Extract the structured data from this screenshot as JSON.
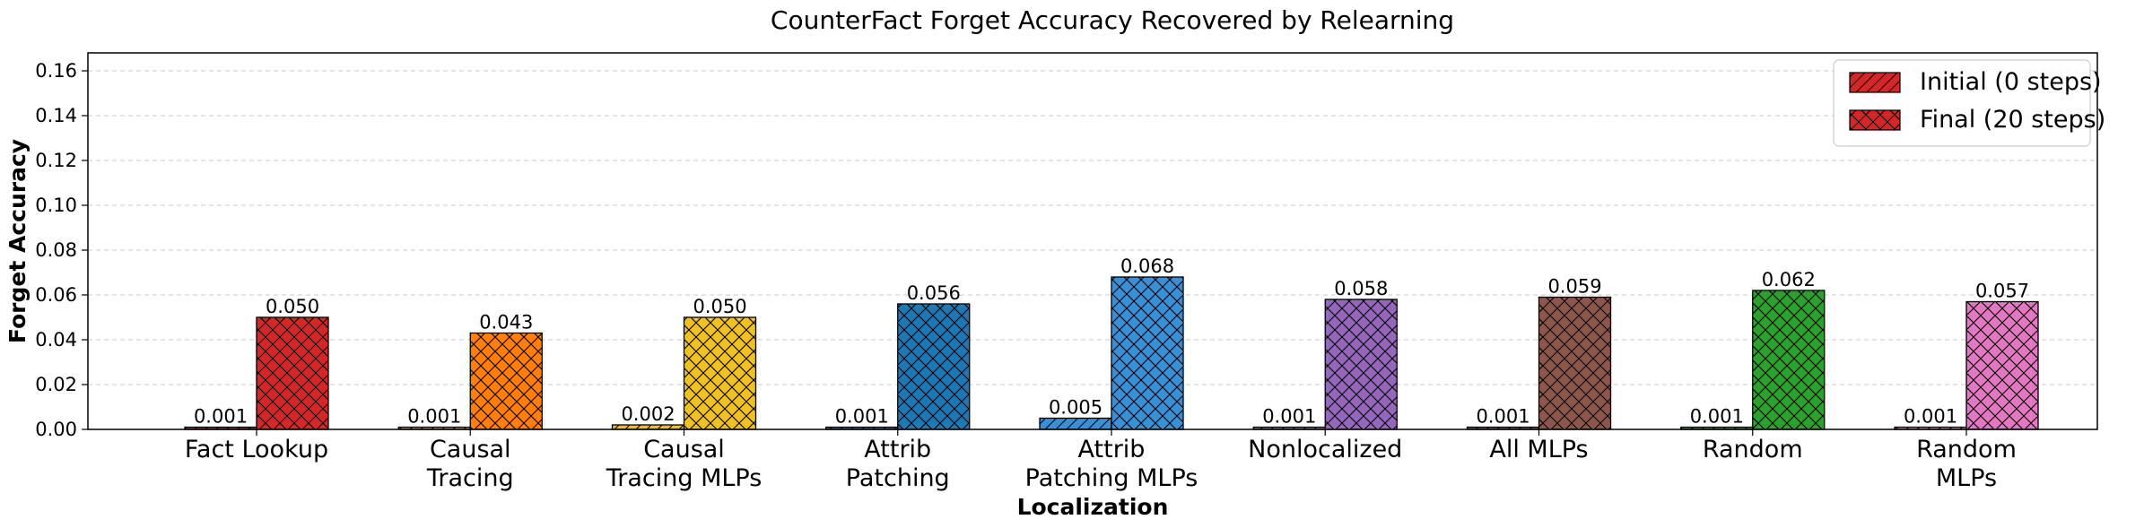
{
  "chart_data": {
    "type": "bar",
    "title": "CounterFact Forget Accuracy Recovered by Relearning",
    "xlabel": "Localization",
    "ylabel": "Forget Accuracy",
    "ylim": [
      0,
      0.168
    ],
    "yticks": [
      "0.00",
      "0.02",
      "0.04",
      "0.06",
      "0.08",
      "0.10",
      "0.12",
      "0.14",
      "0.16"
    ],
    "grid": "horizontal-dashed",
    "legend_position": "top-right",
    "categories": [
      [
        "Fact Lookup"
      ],
      [
        "Causal",
        "Tracing"
      ],
      [
        "Causal",
        "Tracing MLPs"
      ],
      [
        "Attrib",
        "Patching"
      ],
      [
        "Attrib",
        "Patching MLPs"
      ],
      [
        "Nonlocalized"
      ],
      [
        "All MLPs"
      ],
      [
        "Random"
      ],
      [
        "Random",
        "MLPs"
      ]
    ],
    "colors": [
      "#d62728",
      "#ff7f0e",
      "#f0c020",
      "#1f77b4",
      "#3a8fd6",
      "#9467bd",
      "#8c564b",
      "#2ca02c",
      "#e377c2"
    ],
    "series": [
      {
        "name": "Initial (0 steps)",
        "hatch": "diagonal",
        "values": [
          0.001,
          0.001,
          0.002,
          0.001,
          0.005,
          0.001,
          0.001,
          0.001,
          0.001
        ],
        "labels": [
          "0.001",
          "0.001",
          "0.002",
          "0.001",
          "0.005",
          "0.001",
          "0.001",
          "0.001",
          "0.001"
        ]
      },
      {
        "name": "Final (20 steps)",
        "hatch": "cross",
        "values": [
          0.05,
          0.043,
          0.05,
          0.056,
          0.068,
          0.058,
          0.059,
          0.062,
          0.057
        ],
        "labels": [
          "0.050",
          "0.043",
          "0.050",
          "0.056",
          "0.068",
          "0.058",
          "0.059",
          "0.062",
          "0.057"
        ]
      }
    ],
    "legend_color": "#d62728"
  }
}
